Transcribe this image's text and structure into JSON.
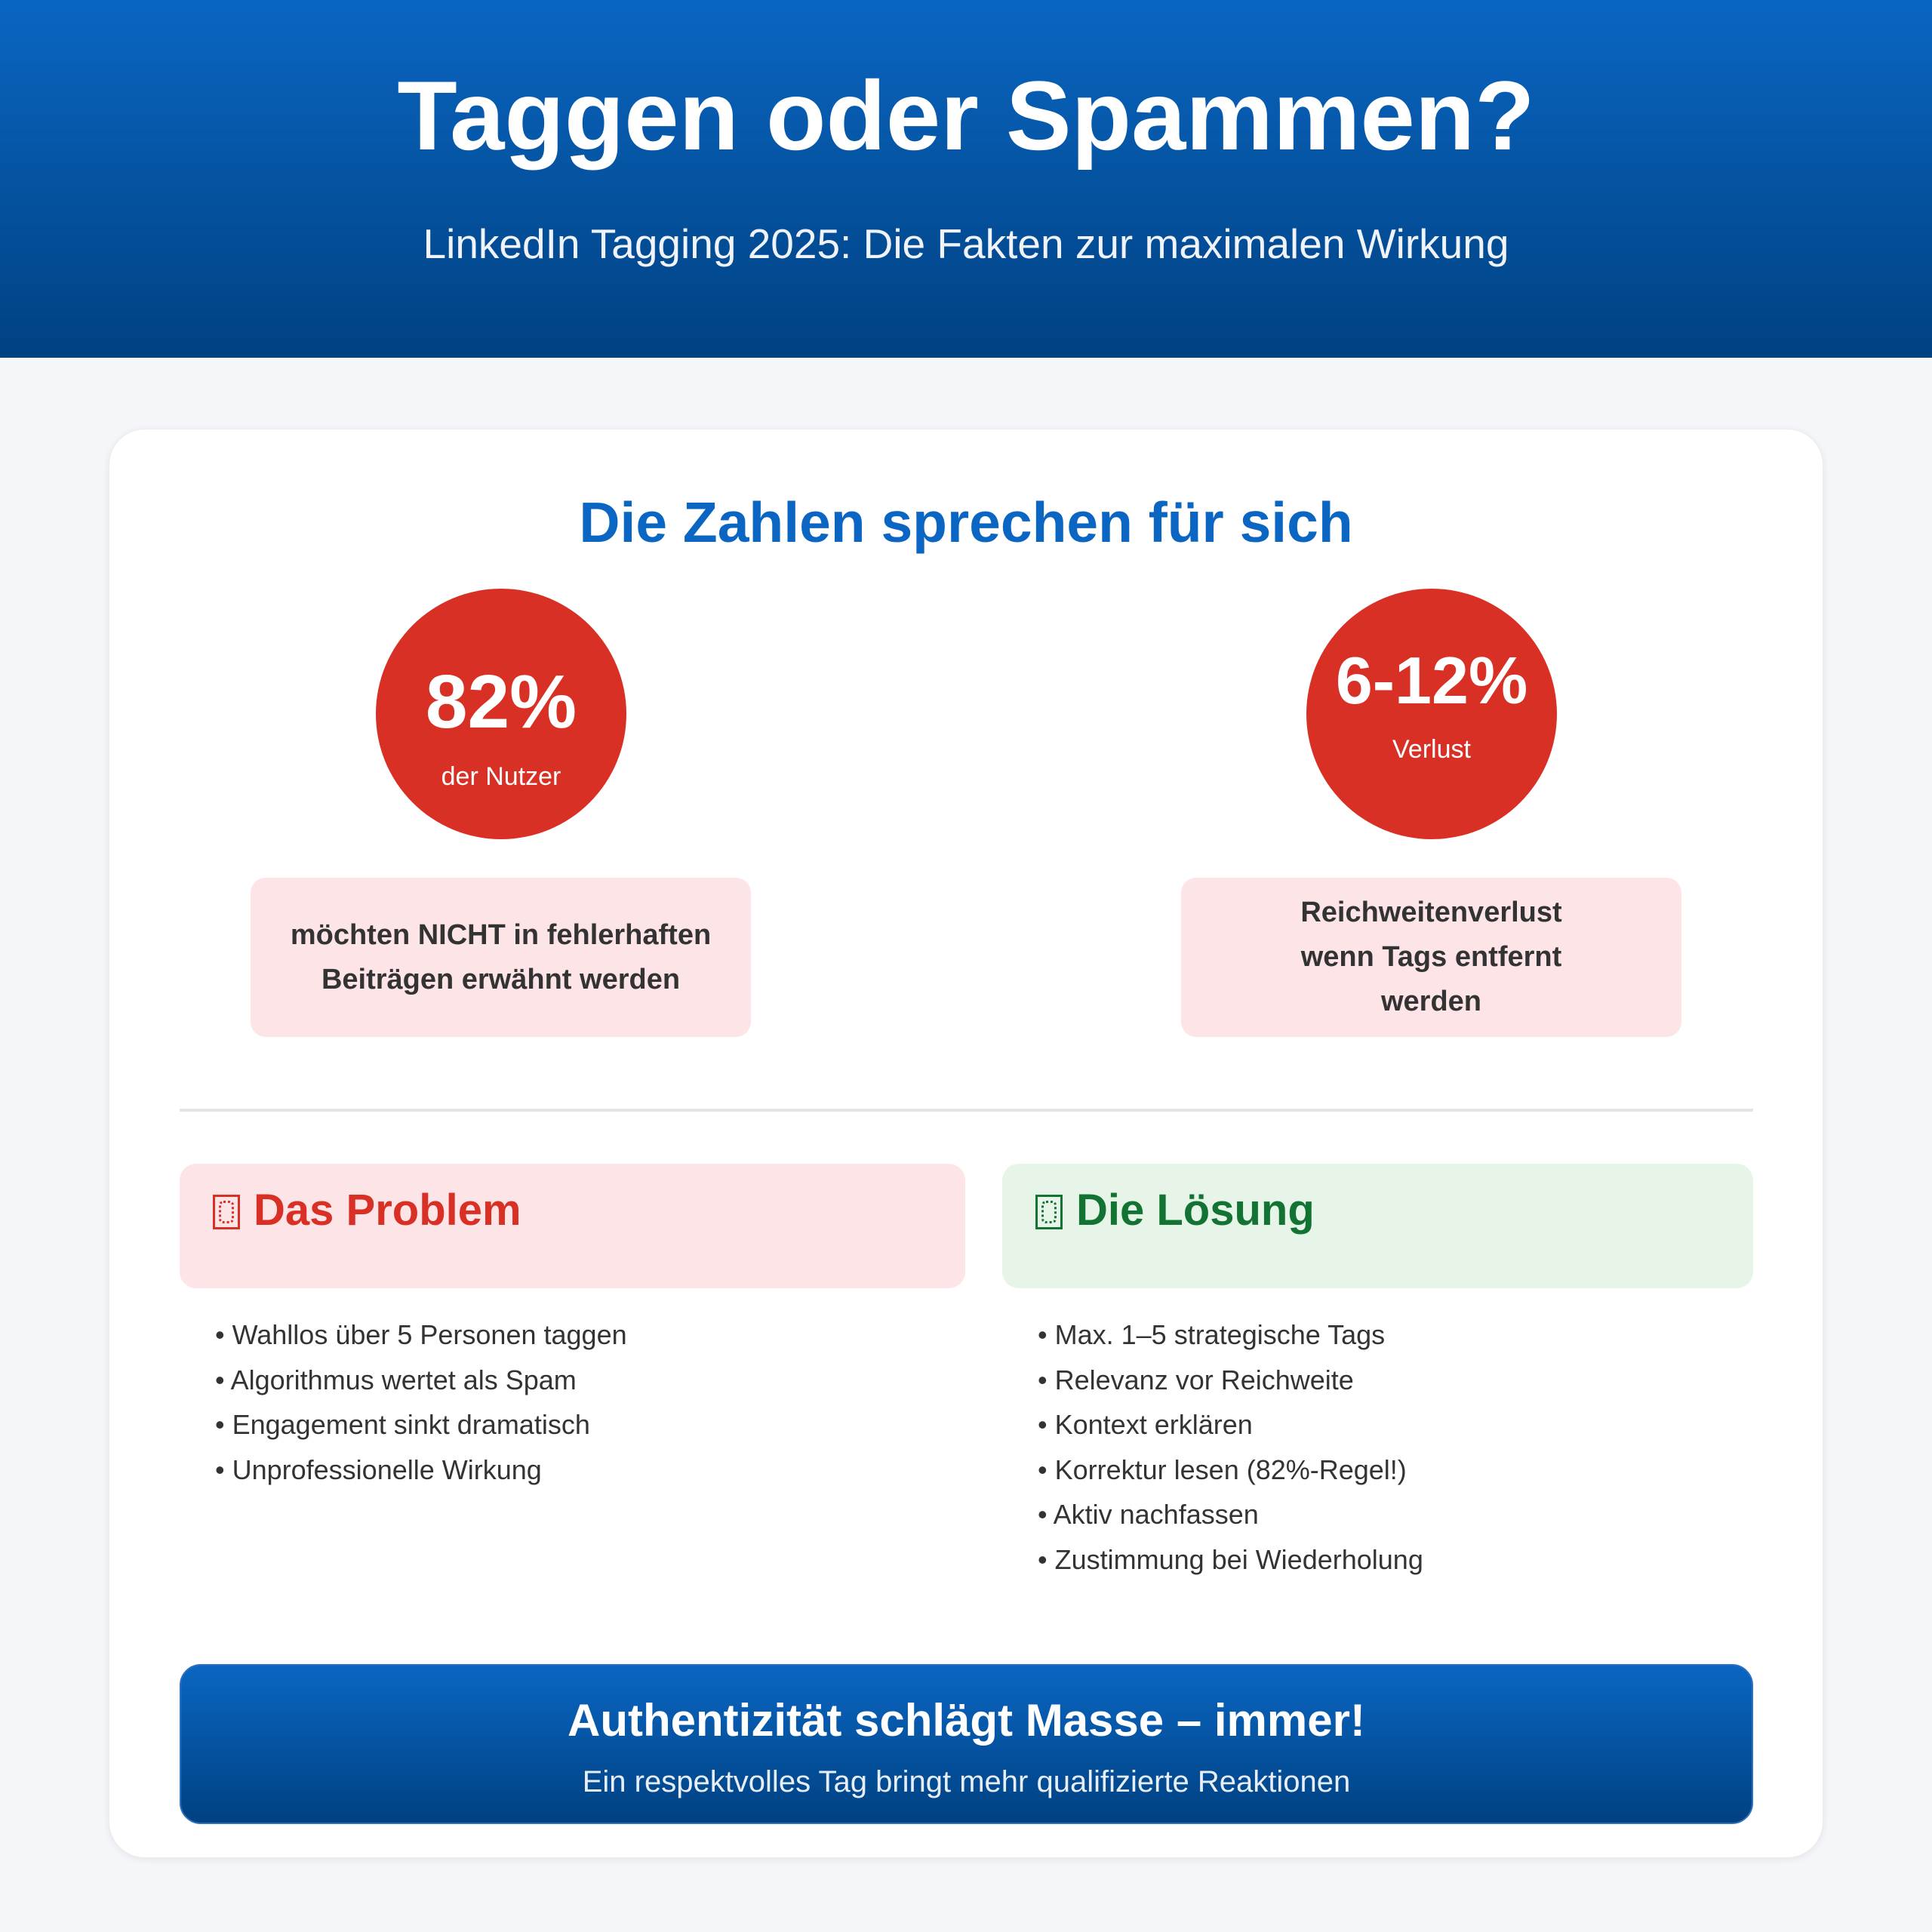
{
  "header": {
    "title": "Taggen oder Spammen?",
    "subtitle": "LinkedIn Tagging 2025: Die Fakten zur maximalen Wirkung"
  },
  "stats_section": {
    "title": "Die Zahlen sprechen für sich",
    "stats": [
      {
        "value": "82%",
        "label": "der Nutzer",
        "description": "möchten NICHT in fehlerhaften Beiträgen erwähnt werden"
      },
      {
        "value": "6-12%",
        "label": "Verlust",
        "description": "Reichweitenverlust wenn Tags entfernt werden"
      }
    ]
  },
  "problem": {
    "icon": "missing-glyph-icon",
    "title": "Das Problem",
    "items": [
      "Wahllos über 5 Personen taggen",
      "Algorithmus wertet als Spam",
      "Engagement sinkt dramatisch",
      "Unprofessionelle Wirkung"
    ]
  },
  "solution": {
    "icon": "missing-glyph-icon",
    "title": "Die Lösung",
    "items": [
      "Max. 1–5 strategische Tags",
      "Relevanz vor Reichweite",
      "Kontext erklären",
      "Korrektur lesen (82%-Regel!)",
      "Aktiv nachfassen",
      "Zustimmung bei Wiederholung"
    ]
  },
  "cta": {
    "title": "Authentizität schlägt Masse – immer!",
    "subtitle": "Ein respektvolles Tag bringt mehr qualifizierte Reaktionen"
  },
  "colors": {
    "primary": "#0a66c2",
    "primary_dark": "#004182",
    "danger": "#d93025",
    "success": "#137333",
    "pink_bg": "#fde4e6",
    "green_bg": "#e7f5e8"
  }
}
